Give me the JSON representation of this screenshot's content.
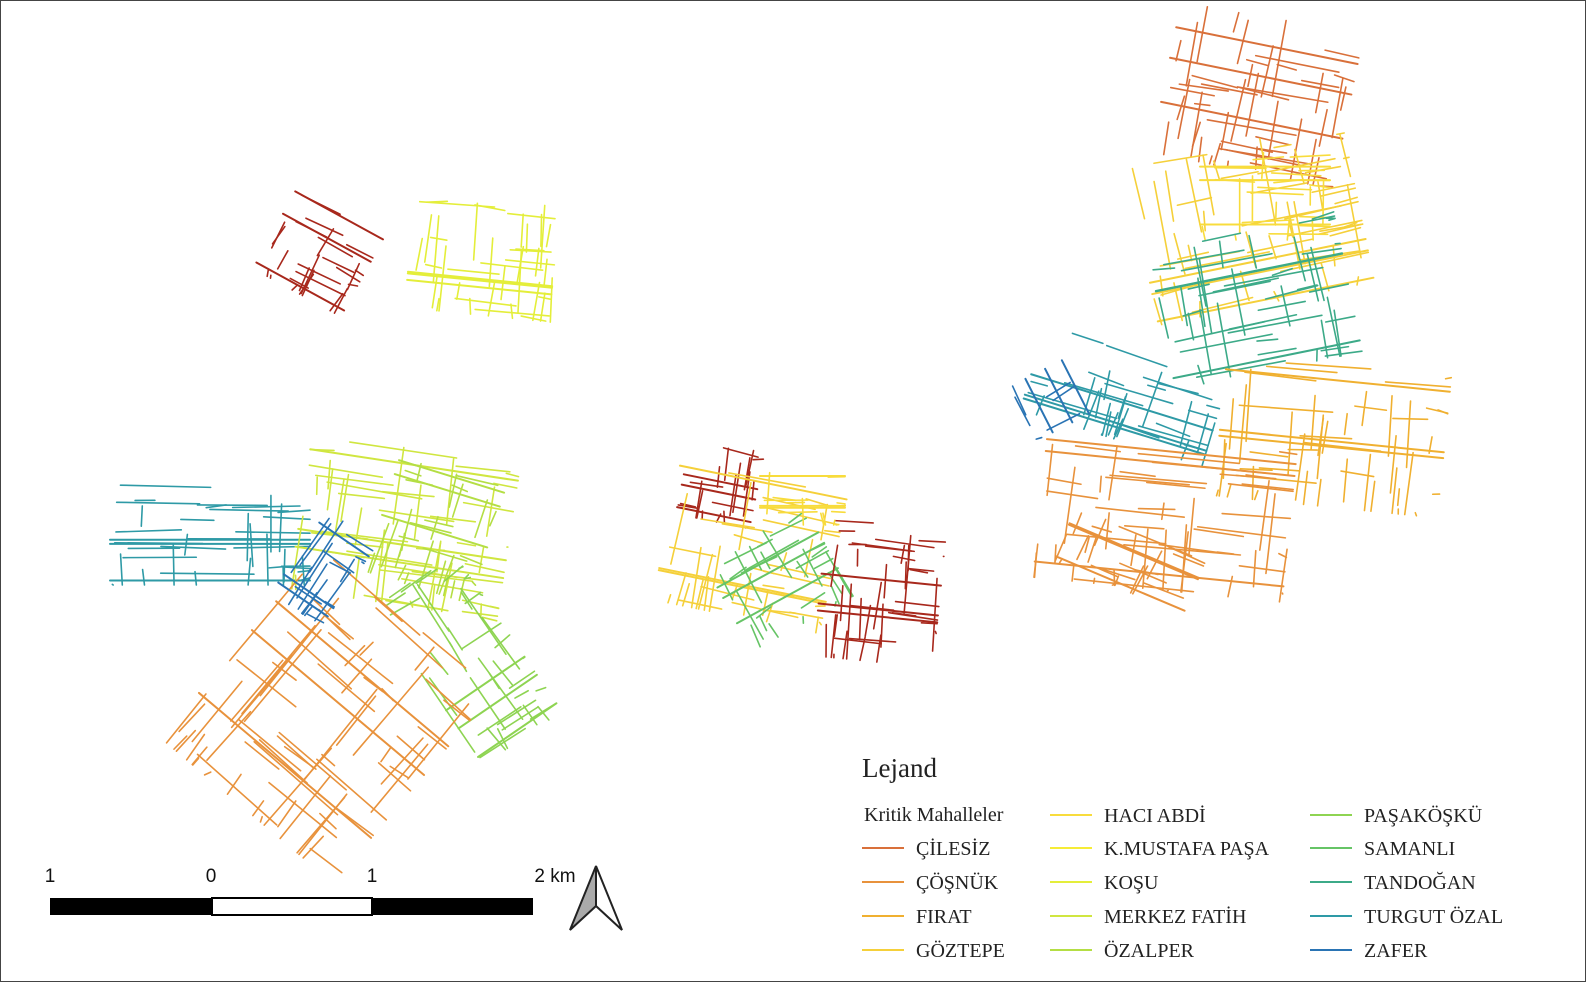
{
  "legend": {
    "title": "Lejand",
    "subtitle": "Kritik Mahalleler",
    "entries": [
      {
        "name": "ÇİLESİZ",
        "color": "#d9703a"
      },
      {
        "name": "ÇÖŞNÜK",
        "color": "#e8923c"
      },
      {
        "name": "FIRAT",
        "color": "#f0b030"
      },
      {
        "name": "GÖZTEPE",
        "color": "#f5d03a"
      },
      {
        "name": "HACI ABDİ",
        "color": "#f8dc3c"
      },
      {
        "name": "K.MUSTAFA PAŞA",
        "color": "#f6ec36"
      },
      {
        "name": "KOŞU",
        "color": "#e4ee3a"
      },
      {
        "name": "MERKEZ FATİH",
        "color": "#d0e640"
      },
      {
        "name": "ÖZALPER",
        "color": "#b4de44"
      },
      {
        "name": "PAŞAKÖŞKÜ",
        "color": "#8ed452"
      },
      {
        "name": "SAMANLI",
        "color": "#66c466"
      },
      {
        "name": "TANDOĞAN",
        "color": "#3caa88"
      },
      {
        "name": "TURGUT ÖZAL",
        "color": "#2e9aa6"
      },
      {
        "name": "ZAFER",
        "color": "#2a74b4"
      }
    ]
  },
  "scale_bar": {
    "labels": [
      "1",
      "0",
      "1",
      "2 km"
    ]
  }
}
